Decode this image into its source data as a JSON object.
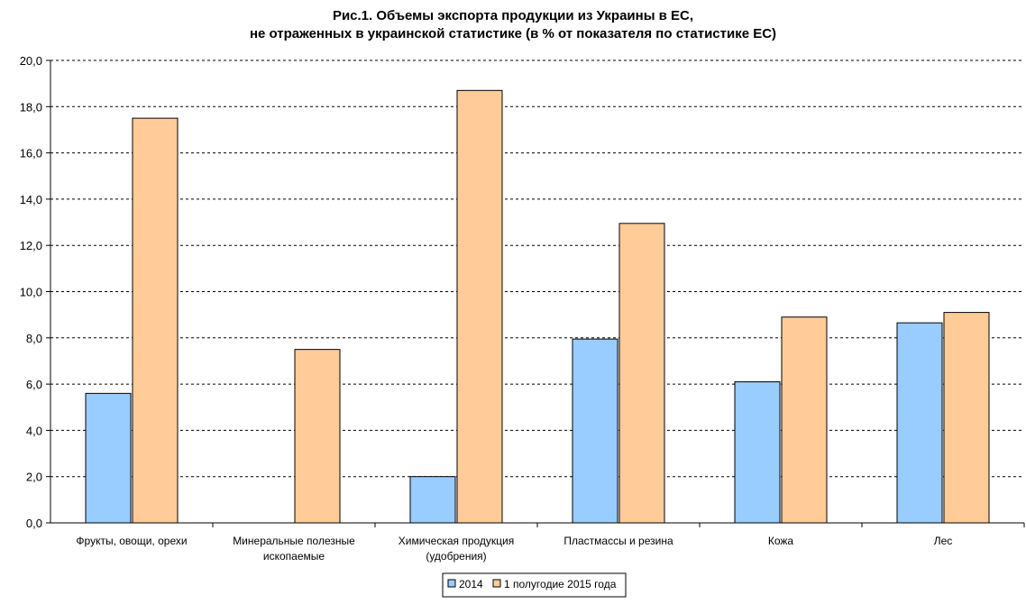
{
  "chart_data": {
    "type": "bar",
    "title": [
      "Рис.1. Объемы экспорта продукции из Украины в ЕС,",
      "не отраженных в украинской статистике (в % от показателя по статистике ЕС)"
    ],
    "xlabel": "",
    "ylabel": "",
    "ylim": [
      0,
      20
    ],
    "yticks": [
      "0,0",
      "2,0",
      "4,0",
      "6,0",
      "8,0",
      "10,0",
      "12,0",
      "14,0",
      "16,0",
      "18,0",
      "20,0"
    ],
    "grid": "horizontal dashed",
    "legend_position": "bottom",
    "categories": [
      [
        "Фрукты, овощи, орехи"
      ],
      [
        "Минеральные полезные",
        "ископаемые"
      ],
      [
        "Химическая продукция",
        "(удобрения)"
      ],
      [
        "Пластмассы и резина"
      ],
      [
        "Кожа"
      ],
      [
        "Лес"
      ]
    ],
    "series": [
      {
        "name": "2014",
        "color": "#99ccff",
        "values": [
          5.6,
          0,
          2.0,
          7.95,
          6.1,
          8.65
        ]
      },
      {
        "name": "1 полугодие 2015 года",
        "color": "#ffcc99",
        "values": [
          17.5,
          7.5,
          18.7,
          12.95,
          8.9,
          9.1
        ]
      }
    ]
  }
}
